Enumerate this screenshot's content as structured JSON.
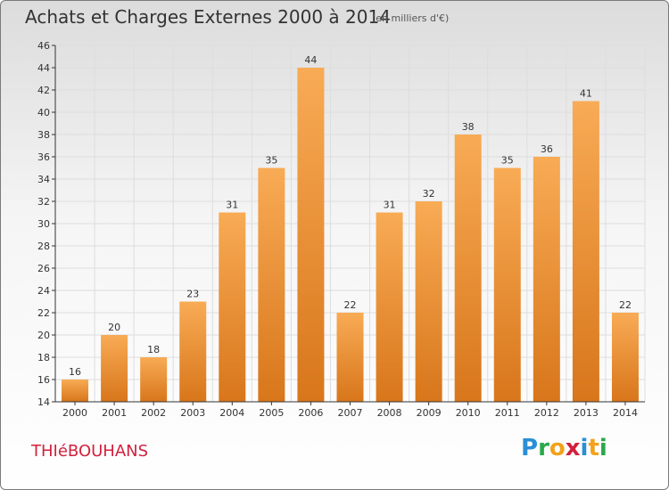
{
  "header": {
    "title": "Achats et Charges Externes 2000 à 2014",
    "subtitle": "(en milliers d'€)"
  },
  "footer": {
    "commune": "THIéBOUHANS",
    "logo_letters": [
      "P",
      "r",
      "o",
      "x",
      "i",
      "t",
      "i"
    ],
    "logo_colors": [
      "#2a8fd6",
      "#2aa84a",
      "#f2a21b",
      "#d2213d",
      "#2a8fd6",
      "#f2a21b",
      "#2aa84a"
    ]
  },
  "colors": {
    "bar_light": "#f8ab55",
    "bar_dark": "#d8761b",
    "grid": "#dddddd",
    "axis": "#333333",
    "text": "#333333"
  },
  "chart_data": {
    "type": "bar",
    "categories": [
      "2000",
      "2001",
      "2002",
      "2003",
      "2004",
      "2005",
      "2006",
      "2007",
      "2008",
      "2009",
      "2010",
      "2011",
      "2012",
      "2013",
      "2014"
    ],
    "values": [
      16,
      20,
      18,
      23,
      31,
      35,
      44,
      22,
      31,
      32,
      38,
      35,
      36,
      41,
      22
    ],
    "title": "Achats et Charges Externes 2000 à 2014",
    "ylim": [
      14,
      46
    ],
    "yticks": [
      14,
      16,
      18,
      20,
      22,
      24,
      26,
      28,
      30,
      32,
      34,
      36,
      38,
      40,
      42,
      44,
      46
    ],
    "grid": true
  }
}
